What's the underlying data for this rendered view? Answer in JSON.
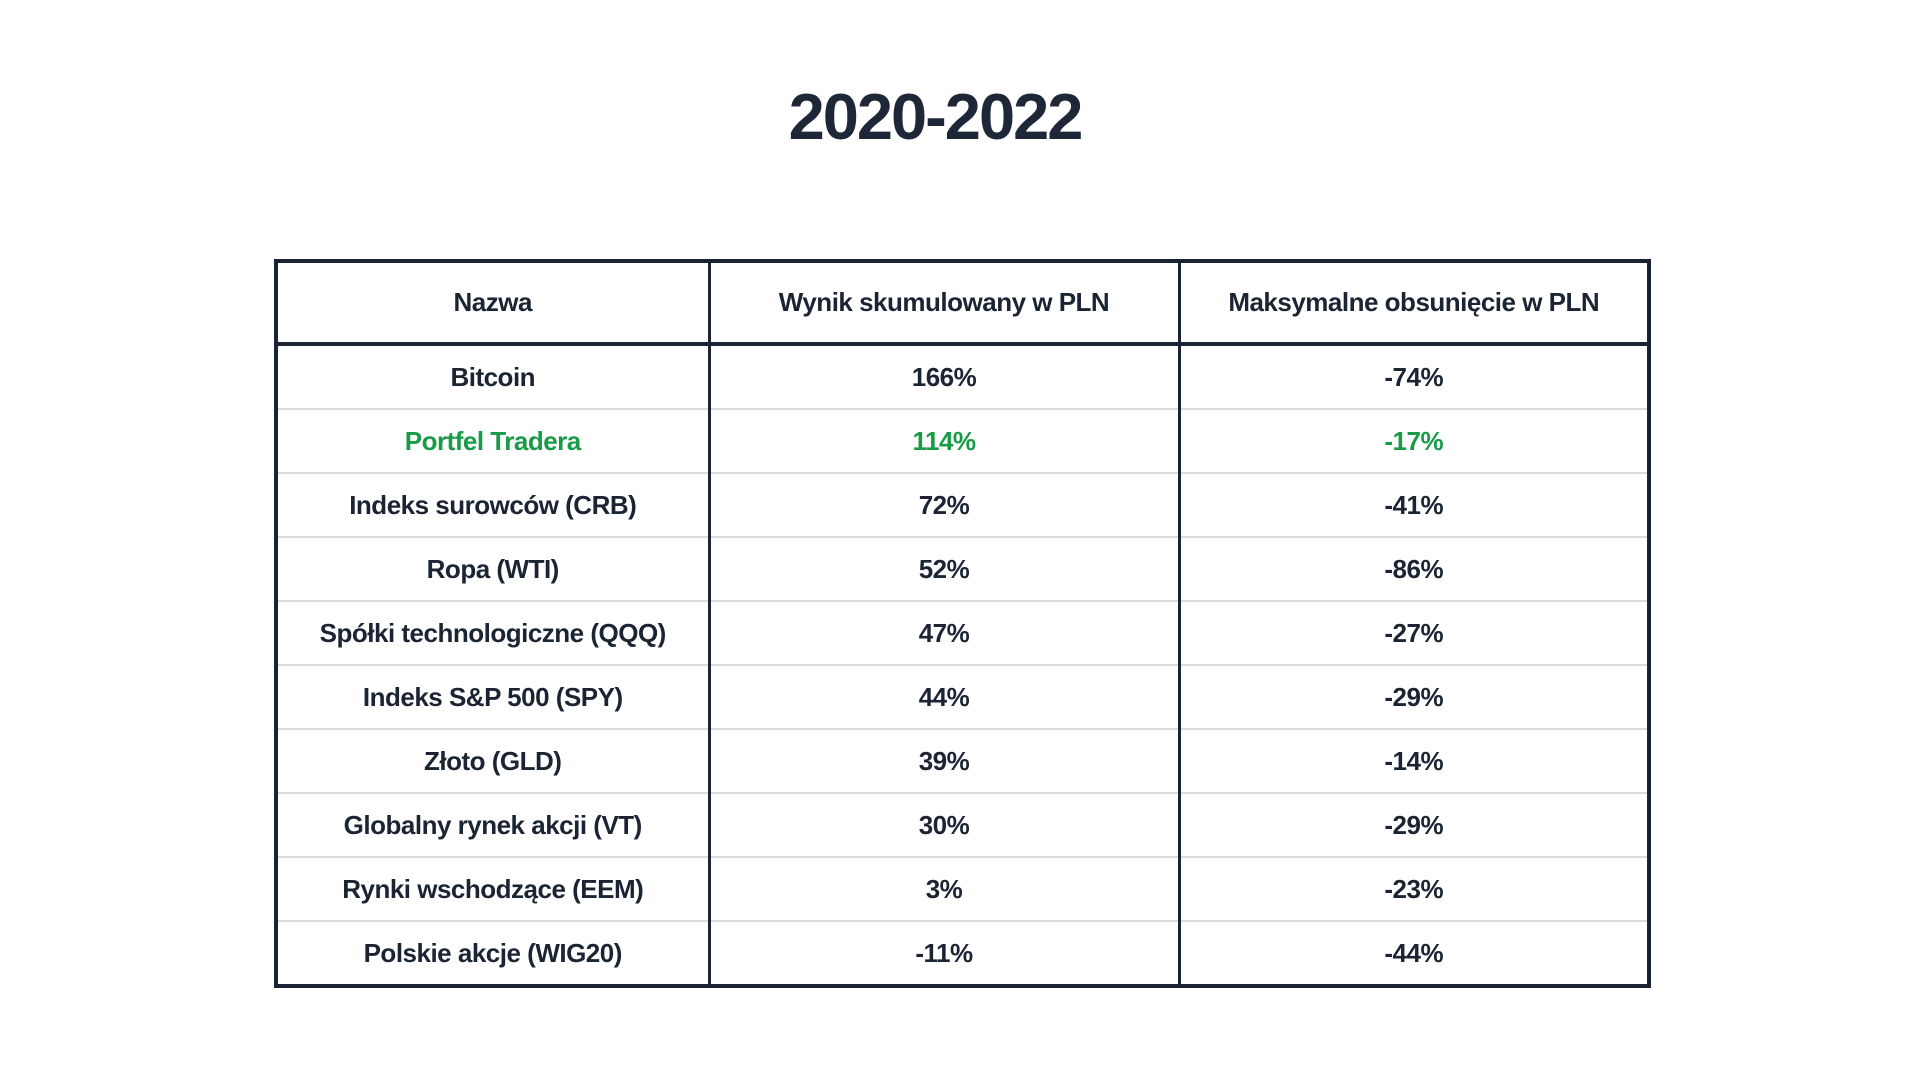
{
  "title": "2020-2022",
  "chart_data": {
    "type": "table",
    "title": "2020-2022",
    "columns": [
      "Nazwa",
      "Wynik skumulowany w PLN",
      "Maksymalne obsunięcie w PLN"
    ],
    "rows": [
      {
        "name": "Bitcoin",
        "cumulative_result_pln": "166%",
        "max_drawdown_pln": "-74%",
        "highlighted": false
      },
      {
        "name": "Portfel Tradera",
        "cumulative_result_pln": "114%",
        "max_drawdown_pln": "-17%",
        "highlighted": true
      },
      {
        "name": "Indeks surowców (CRB)",
        "cumulative_result_pln": "72%",
        "max_drawdown_pln": "-41%",
        "highlighted": false
      },
      {
        "name": "Ropa (WTI)",
        "cumulative_result_pln": "52%",
        "max_drawdown_pln": "-86%",
        "highlighted": false
      },
      {
        "name": "Spółki technologiczne (QQQ)",
        "cumulative_result_pln": "47%",
        "max_drawdown_pln": "-27%",
        "highlighted": false
      },
      {
        "name": "Indeks S&P 500 (SPY)",
        "cumulative_result_pln": "44%",
        "max_drawdown_pln": "-29%",
        "highlighted": false
      },
      {
        "name": "Złoto (GLD)",
        "cumulative_result_pln": "39%",
        "max_drawdown_pln": "-14%",
        "highlighted": false
      },
      {
        "name": "Globalny rynek akcji (VT)",
        "cumulative_result_pln": "30%",
        "max_drawdown_pln": "-29%",
        "highlighted": false
      },
      {
        "name": "Rynki wschodzące (EEM)",
        "cumulative_result_pln": "3%",
        "max_drawdown_pln": "-23%",
        "highlighted": false
      },
      {
        "name": "Polskie akcje (WIG20)",
        "cumulative_result_pln": "-11%",
        "max_drawdown_pln": "-44%",
        "highlighted": false
      }
    ],
    "layout": {
      "legend": "none",
      "grid": "table borders: dark outer frame and column dividers, light gray row separators",
      "highlight_row": "Portfel Tradera shown in green"
    }
  },
  "colors": {
    "background": "#ffffff",
    "text": "#1b2433",
    "title_text": "#1e2738",
    "border": "#1a2333",
    "row_separator": "#d9dadb",
    "highlight_green": "#189b47"
  }
}
